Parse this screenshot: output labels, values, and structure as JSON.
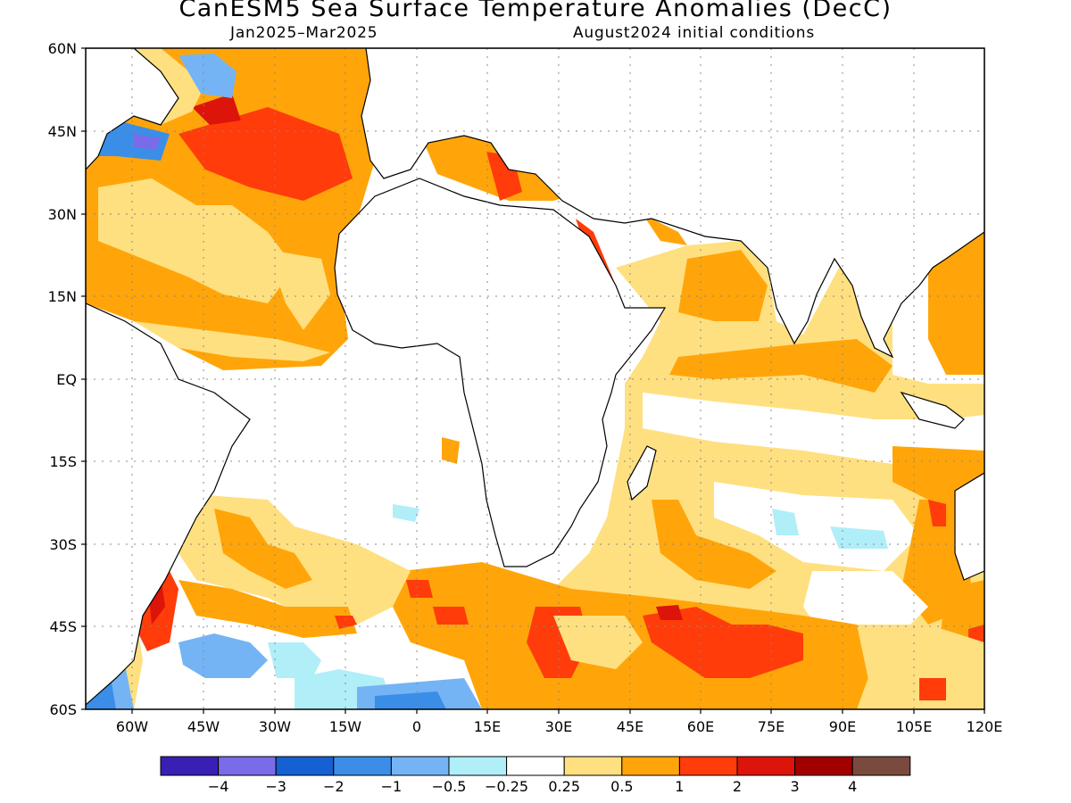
{
  "title": "CanESM5 Sea Surface Temperature Anomalies (DecC)",
  "subtitle_left": "Jan2025–Mar2025",
  "subtitle_right": "August2024 initial conditions",
  "lat_ticks": [
    "60N",
    "45N",
    "30N",
    "15N",
    "EQ",
    "15S",
    "30S",
    "45S",
    "60S"
  ],
  "lon_ticks": [
    "60W",
    "45W",
    "30W",
    "15W",
    "0",
    "15E",
    "30E",
    "45E",
    "60E",
    "75E",
    "90E",
    "105E",
    "120E"
  ],
  "colorbar": {
    "colors": [
      "#3a1fb4",
      "#7a6ce8",
      "#1560d2",
      "#3a8ee8",
      "#74b4f4",
      "#b0eef8",
      "#ffffff",
      "#ffe080",
      "#ffa50a",
      "#ff3c0a",
      "#dc140a",
      "#a00000",
      "#7a4a3e"
    ],
    "labels": [
      "−4",
      "−3",
      "−2",
      "−1",
      "−0.5",
      "−0.25",
      "0.25",
      "0.5",
      "1",
      "2",
      "3",
      "4"
    ]
  }
}
